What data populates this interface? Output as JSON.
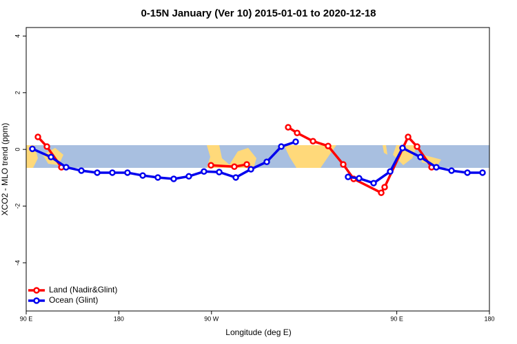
{
  "chart_data": {
    "type": "line",
    "title": "0-15N January (Ver 10)   2015-01-01 to 2020-12-18",
    "x_label": "Longitude (deg E)",
    "y_label": "XCO2 - MLO trend (ppm)",
    "xlim": [
      90,
      540
    ],
    "ylim": [
      -5.7,
      4.3
    ],
    "xticks": [
      {
        "value": 90,
        "label": "90 E"
      },
      {
        "value": 180,
        "label": "180"
      },
      {
        "value": 270,
        "label": "90 W"
      },
      {
        "value": 450,
        "label": "90 E"
      },
      {
        "value": 540,
        "label": "180"
      }
    ],
    "yticks": [
      -4,
      -2,
      0,
      2,
      4
    ],
    "legend": "bottom-left",
    "series": [
      {
        "name": "Land (Nadir&Glint)",
        "color": "#ff0000",
        "x": [
          101.4,
          110.1,
          124.2,
          200,
          269.5,
          292.2,
          304.3,
          320,
          344.5,
          353.2,
          368.6,
          383.3,
          398.0,
          408.1,
          434.9,
          438.2,
          461.0,
          469.7,
          483.8
        ],
        "values": [
          0.44,
          0.1,
          -0.63,
          null,
          -0.56,
          -0.61,
          -0.53,
          null,
          0.78,
          0.58,
          0.29,
          0.12,
          -0.53,
          -1.04,
          -1.53,
          -1.33,
          0.44,
          0.1,
          -0.63
        ]
      },
      {
        "name": "Ocean (Glint)",
        "color": "#0000ee",
        "x": [
          96.0,
          114.1,
          128.8,
          143.6,
          159.0,
          173.7,
          188.4,
          203.2,
          217.9,
          233.3,
          248.0,
          262.7,
          277.5,
          293.6,
          308.3,
          323.7,
          337.8,
          351.8,
          375,
          402.7,
          413.4,
          427.5,
          443.6,
          455.6,
          473.0,
          488.4,
          503.2,
          518.6,
          533.3
        ],
        "values": [
          0.02,
          -0.27,
          -0.63,
          -0.75,
          -0.82,
          -0.82,
          -0.82,
          -0.92,
          -0.99,
          -1.04,
          -0.95,
          -0.78,
          -0.8,
          -0.99,
          -0.7,
          -0.44,
          0.1,
          0.27,
          null,
          -0.97,
          -1.02,
          -1.19,
          -0.78,
          0.05,
          -0.27,
          -0.63,
          -0.75,
          -0.82,
          -0.82
        ]
      }
    ]
  }
}
